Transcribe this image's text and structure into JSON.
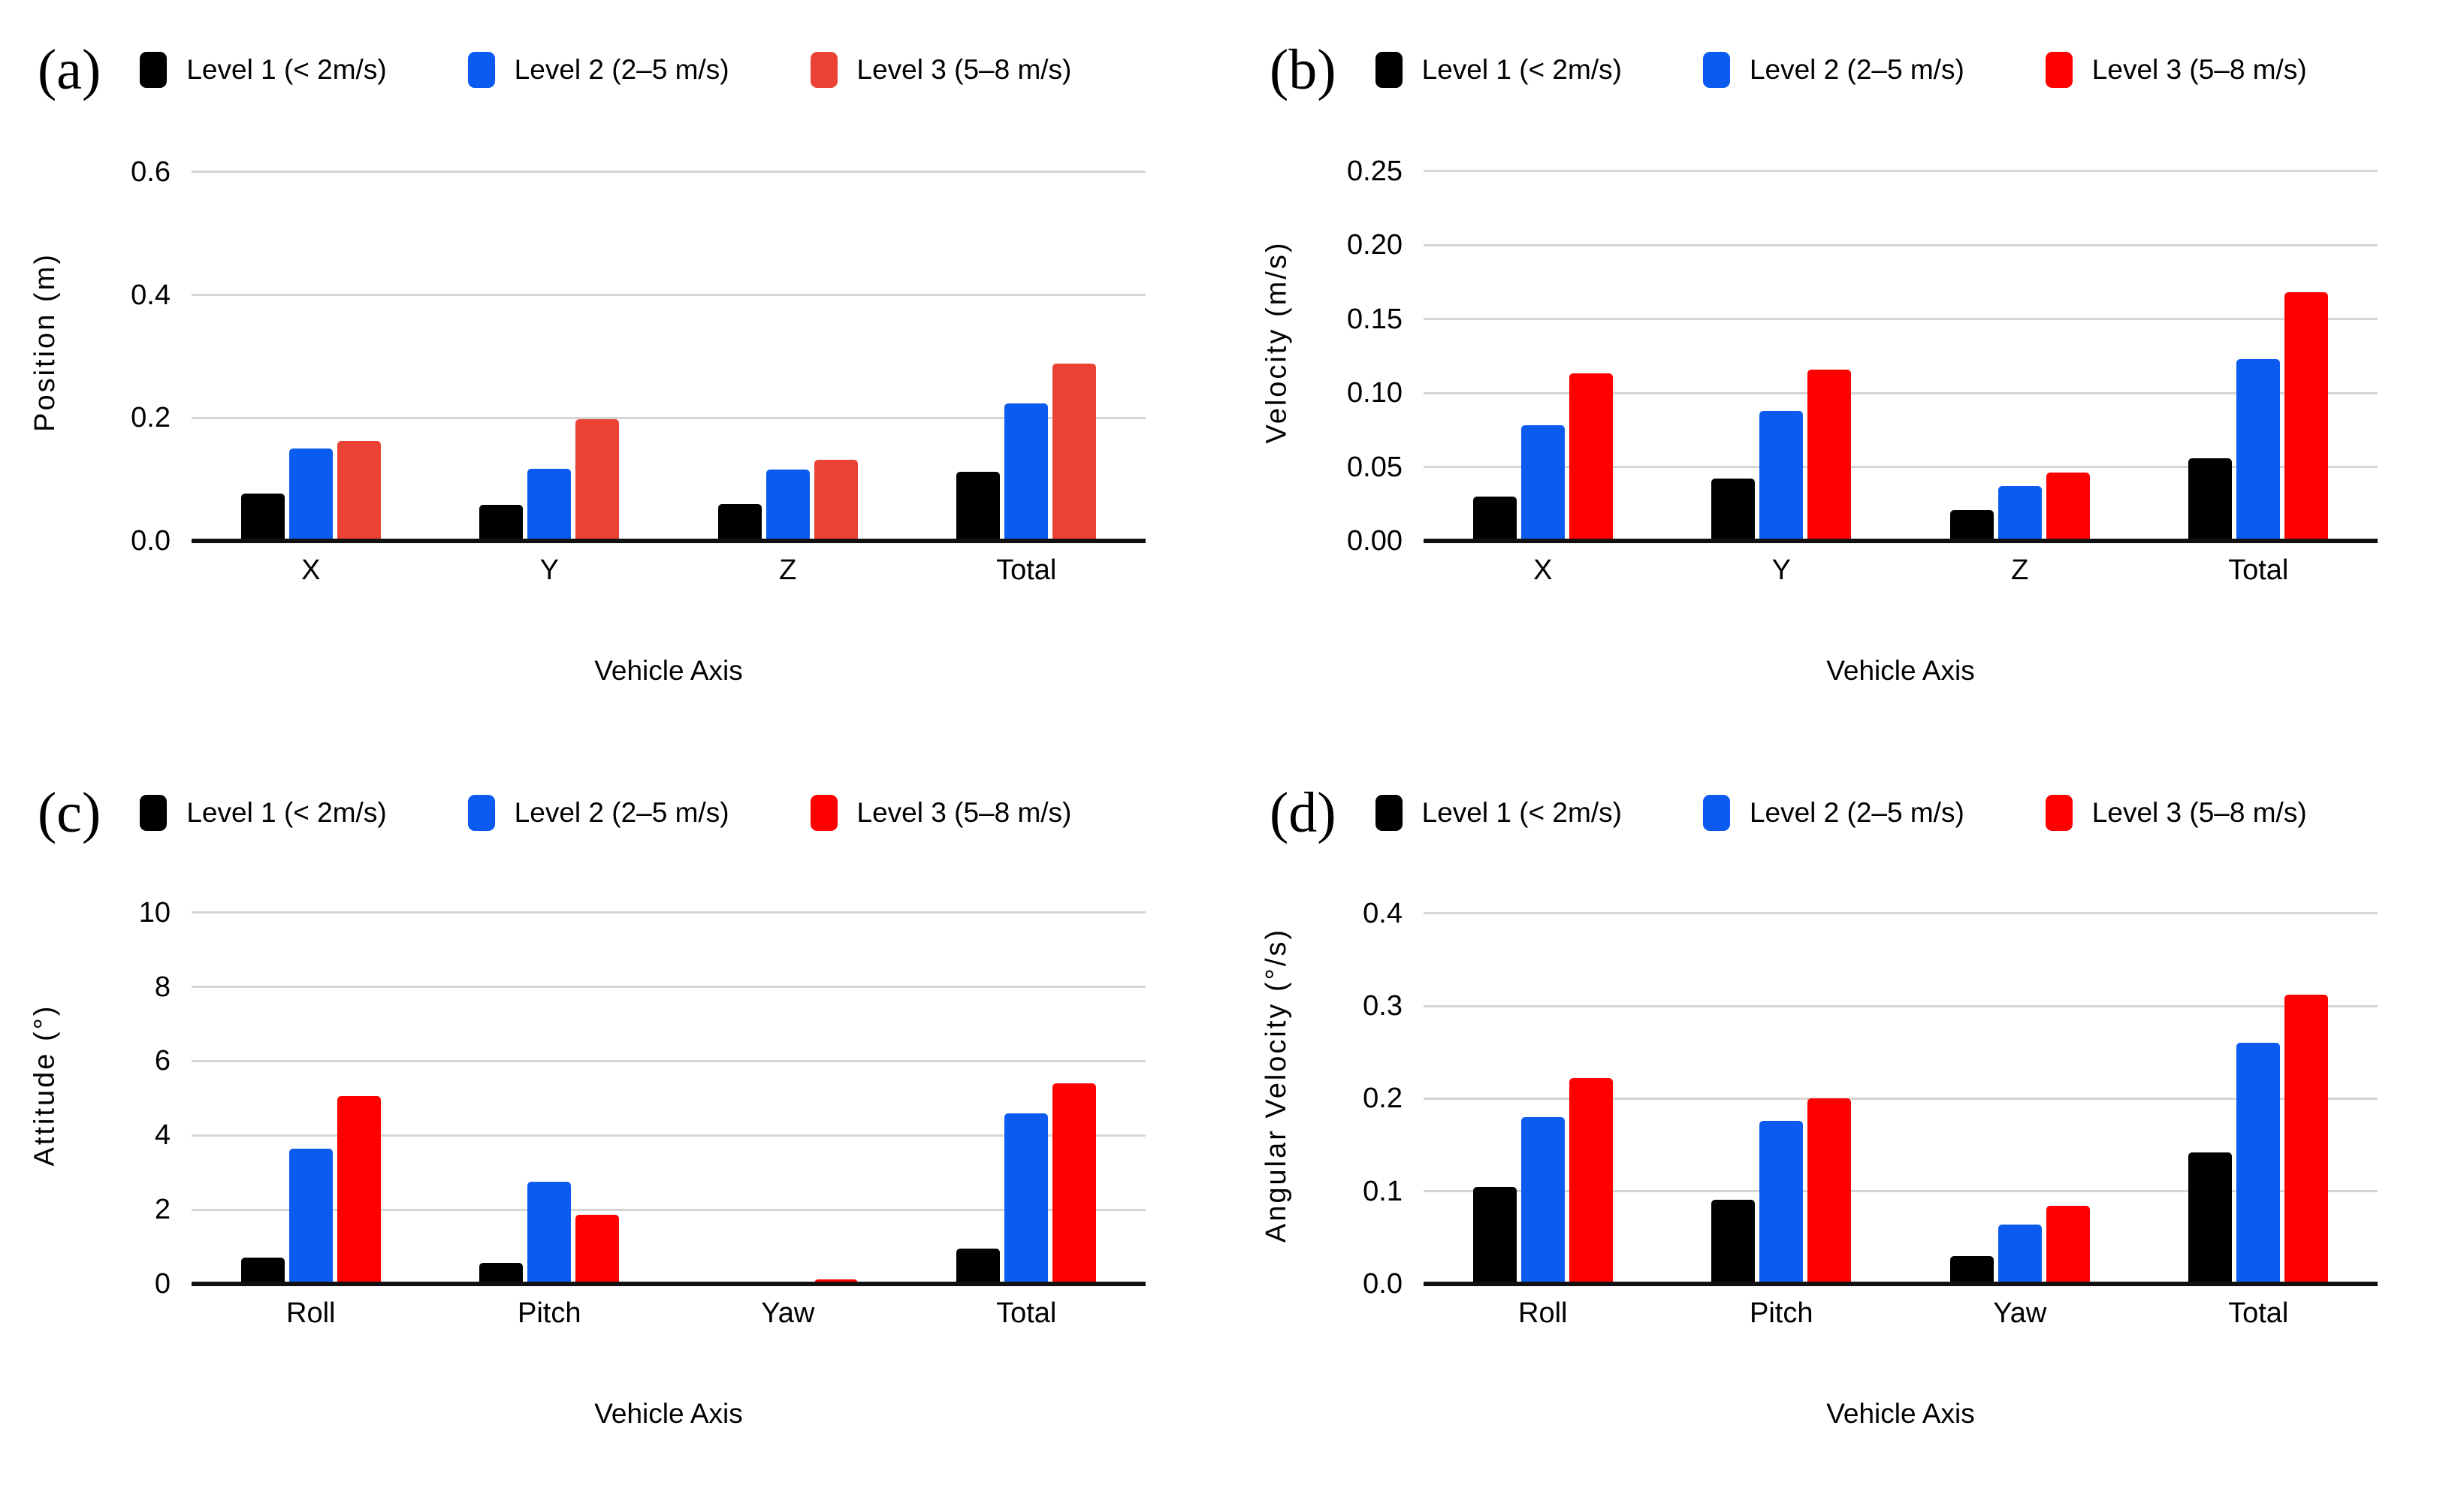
{
  "figure": {
    "background": "#ffffff"
  },
  "colors": {
    "level1_black": "#000000",
    "level2_blue": "#0b5bf0",
    "level3_red_panel_a": "#ea4335",
    "level3_red_pure": "#ff0000",
    "gridline": "#d5d5d5",
    "axis_line": "#111111"
  },
  "chart_data": [
    {
      "panel_letter": "(a)",
      "type": "bar",
      "title": "",
      "categories": [
        "X",
        "Y",
        "Z",
        "Total"
      ],
      "series": [
        {
          "name": "Level 1 (< 2m/s)",
          "color": "#000000",
          "values": [
            0.077,
            0.059,
            0.06,
            0.112
          ]
        },
        {
          "name": "Level 2 (2–5 m/s)",
          "color": "#0b5bf0",
          "values": [
            0.15,
            0.117,
            0.116,
            0.223
          ]
        },
        {
          "name": "Level 3 (5–8 m/s)",
          "color": "#ea4335",
          "values": [
            0.162,
            0.198,
            0.132,
            0.288
          ]
        }
      ],
      "xlabel": "Vehicle Axis",
      "ylabel": "Position (m)",
      "ylim": [
        0,
        0.64
      ],
      "yticks": [
        {
          "v": 0.0,
          "label": "0.0"
        },
        {
          "v": 0.2,
          "label": "0.2"
        },
        {
          "v": 0.4,
          "label": "0.4"
        },
        {
          "v": 0.6,
          "label": "0.6"
        }
      ],
      "grid": true,
      "legend_position": "top"
    },
    {
      "panel_letter": "(b)",
      "type": "bar",
      "title": "",
      "categories": [
        "X",
        "Y",
        "Z",
        "Total"
      ],
      "series": [
        {
          "name": "Level 1 (< 2m/s)",
          "color": "#000000",
          "values": [
            0.03,
            0.042,
            0.021,
            0.056
          ]
        },
        {
          "name": "Level 2 (2–5 m/s)",
          "color": "#0b5bf0",
          "values": [
            0.078,
            0.088,
            0.037,
            0.123
          ]
        },
        {
          "name": "Level 3 (5–8 m/s)",
          "color": "#ff0000",
          "values": [
            0.113,
            0.116,
            0.046,
            0.168
          ]
        }
      ],
      "xlabel": "Vehicle Axis",
      "ylabel": "Velocity (m/s)",
      "ylim": [
        0,
        0.266
      ],
      "yticks": [
        {
          "v": 0.0,
          "label": "0.00"
        },
        {
          "v": 0.05,
          "label": "0.05"
        },
        {
          "v": 0.1,
          "label": "0.10"
        },
        {
          "v": 0.15,
          "label": "0.15"
        },
        {
          "v": 0.2,
          "label": "0.20"
        },
        {
          "v": 0.25,
          "label": "0.25"
        }
      ],
      "grid": true,
      "legend_position": "top"
    },
    {
      "panel_letter": "(c)",
      "type": "bar",
      "title": "",
      "categories": [
        "Roll",
        "Pitch",
        "Yaw",
        "Total"
      ],
      "series": [
        {
          "name": "Level 1 (< 2m/s)",
          "color": "#000000",
          "values": [
            0.71,
            0.56,
            0.07,
            0.95
          ]
        },
        {
          "name": "Level 2 (2–5 m/s)",
          "color": "#0b5bf0",
          "values": [
            3.65,
            2.76,
            0.07,
            4.6
          ]
        },
        {
          "name": "Level 3 (5–8 m/s)",
          "color": "#ff0000",
          "values": [
            5.05,
            1.86,
            0.12,
            5.4
          ]
        }
      ],
      "xlabel": "Vehicle Axis",
      "ylabel": "Attitude (°)",
      "ylim": [
        0,
        10.6
      ],
      "yticks": [
        {
          "v": 0,
          "label": "0"
        },
        {
          "v": 2,
          "label": "2"
        },
        {
          "v": 4,
          "label": "4"
        },
        {
          "v": 6,
          "label": "6"
        },
        {
          "v": 8,
          "label": "8"
        },
        {
          "v": 10,
          "label": "10"
        }
      ],
      "grid": true,
      "legend_position": "top"
    },
    {
      "panel_letter": "(d)",
      "type": "bar",
      "title": "",
      "categories": [
        "Roll",
        "Pitch",
        "Yaw",
        "Total"
      ],
      "series": [
        {
          "name": "Level 1 (< 2m/s)",
          "color": "#000000",
          "values": [
            0.105,
            0.091,
            0.03,
            0.142
          ]
        },
        {
          "name": "Level 2 (2–5 m/s)",
          "color": "#0b5bf0",
          "values": [
            0.18,
            0.176,
            0.064,
            0.26
          ]
        },
        {
          "name": "Level 3 (5–8 m/s)",
          "color": "#ff0000",
          "values": [
            0.222,
            0.2,
            0.084,
            0.312
          ]
        }
      ],
      "xlabel": "Vehicle Axis",
      "ylabel": "Angular Velocity (°/s)",
      "ylim": [
        0,
        0.425
      ],
      "yticks": [
        {
          "v": 0.0,
          "label": "0.0"
        },
        {
          "v": 0.1,
          "label": "0.1"
        },
        {
          "v": 0.2,
          "label": "0.2"
        },
        {
          "v": 0.3,
          "label": "0.3"
        },
        {
          "v": 0.4,
          "label": "0.4"
        }
      ],
      "grid": true,
      "legend_position": "top"
    }
  ]
}
